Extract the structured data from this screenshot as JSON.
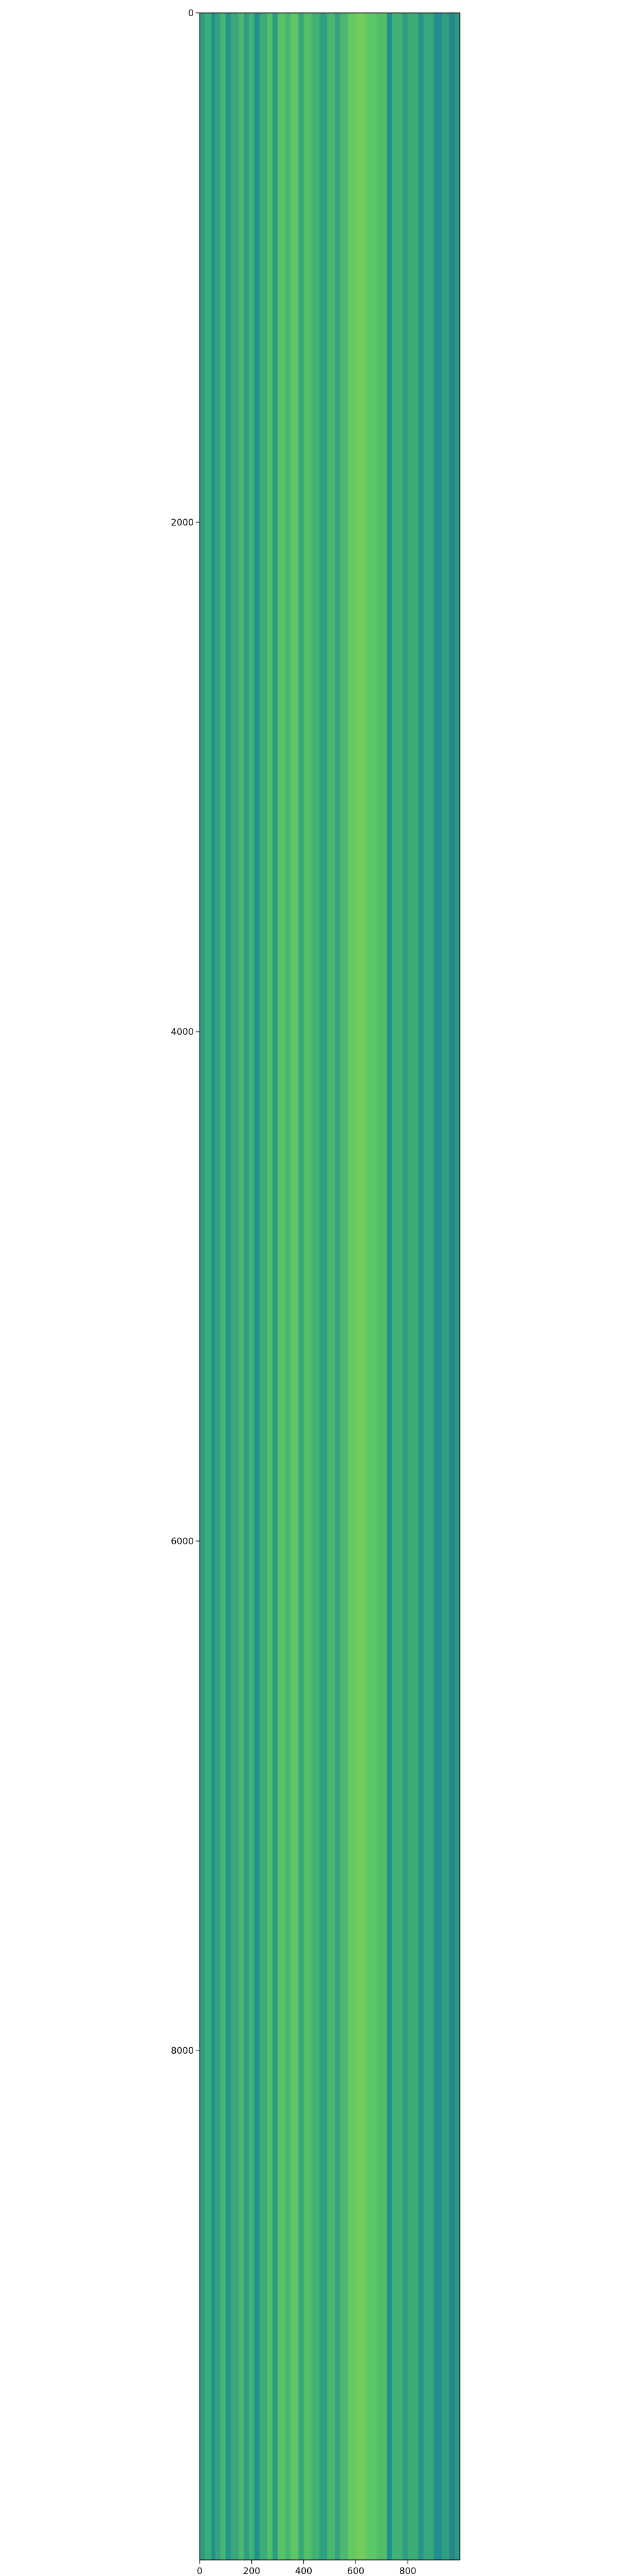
{
  "chart_data": {
    "type": "heatmap",
    "title": "",
    "xlabel": "",
    "ylabel": "",
    "xlim": [
      0,
      1000
    ],
    "ylim": [
      10000,
      0
    ],
    "x_ticks": [
      {
        "value": 0,
        "label": "0"
      },
      {
        "value": 200,
        "label": "200"
      },
      {
        "value": 400,
        "label": "400"
      },
      {
        "value": 600,
        "label": "600"
      },
      {
        "value": 800,
        "label": "800"
      }
    ],
    "y_ticks": [
      {
        "value": 0,
        "label": "0"
      },
      {
        "value": 2000,
        "label": "2000"
      },
      {
        "value": 4000,
        "label": "4000"
      },
      {
        "value": 6000,
        "label": "6000"
      },
      {
        "value": 8000,
        "label": "8000"
      }
    ],
    "colormap": "viridis",
    "column_bands": [
      {
        "x0": 0,
        "x1": 20,
        "value": 0.55
      },
      {
        "x0": 20,
        "x1": 45,
        "value": 0.62
      },
      {
        "x0": 45,
        "x1": 60,
        "value": 0.5
      },
      {
        "x0": 60,
        "x1": 80,
        "value": 0.58
      },
      {
        "x0": 80,
        "x1": 100,
        "value": 0.66
      },
      {
        "x0": 100,
        "x1": 120,
        "value": 0.52
      },
      {
        "x0": 120,
        "x1": 150,
        "value": 0.6
      },
      {
        "x0": 150,
        "x1": 170,
        "value": 0.68
      },
      {
        "x0": 170,
        "x1": 190,
        "value": 0.56
      },
      {
        "x0": 190,
        "x1": 210,
        "value": 0.64
      },
      {
        "x0": 210,
        "x1": 230,
        "value": 0.5
      },
      {
        "x0": 230,
        "x1": 260,
        "value": 0.62
      },
      {
        "x0": 260,
        "x1": 280,
        "value": 0.7
      },
      {
        "x0": 280,
        "x1": 300,
        "value": 0.55
      },
      {
        "x0": 300,
        "x1": 330,
        "value": 0.72
      },
      {
        "x0": 330,
        "x1": 350,
        "value": 0.66
      },
      {
        "x0": 350,
        "x1": 380,
        "value": 0.74
      },
      {
        "x0": 380,
        "x1": 400,
        "value": 0.6
      },
      {
        "x0": 400,
        "x1": 430,
        "value": 0.7
      },
      {
        "x0": 430,
        "x1": 460,
        "value": 0.64
      },
      {
        "x0": 460,
        "x1": 490,
        "value": 0.56
      },
      {
        "x0": 490,
        "x1": 520,
        "value": 0.66
      },
      {
        "x0": 520,
        "x1": 540,
        "value": 0.58
      },
      {
        "x0": 540,
        "x1": 570,
        "value": 0.68
      },
      {
        "x0": 570,
        "x1": 600,
        "value": 0.76
      },
      {
        "x0": 600,
        "x1": 640,
        "value": 0.78
      },
      {
        "x0": 640,
        "x1": 680,
        "value": 0.74
      },
      {
        "x0": 680,
        "x1": 720,
        "value": 0.7
      },
      {
        "x0": 720,
        "x1": 740,
        "value": 0.5
      },
      {
        "x0": 740,
        "x1": 780,
        "value": 0.64
      },
      {
        "x0": 780,
        "x1": 800,
        "value": 0.56
      },
      {
        "x0": 800,
        "x1": 840,
        "value": 0.62
      },
      {
        "x0": 840,
        "x1": 860,
        "value": 0.52
      },
      {
        "x0": 860,
        "x1": 900,
        "value": 0.6
      },
      {
        "x0": 900,
        "x1": 930,
        "value": 0.48
      },
      {
        "x0": 930,
        "x1": 960,
        "value": 0.56
      },
      {
        "x0": 960,
        "x1": 980,
        "value": 0.46
      },
      {
        "x0": 980,
        "x1": 1000,
        "value": 0.54
      }
    ]
  }
}
